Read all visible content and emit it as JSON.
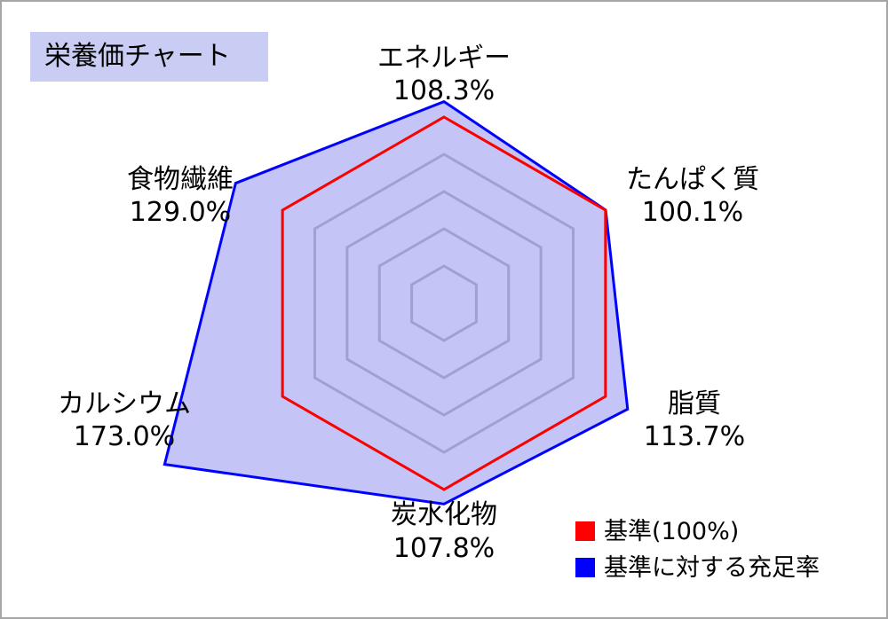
{
  "title": "栄養価チャート",
  "colors": {
    "baseline": "#ff0000",
    "fulfillment_stroke": "#0000ff",
    "fulfillment_fill": "#9c9cf0",
    "grid": "#a6a6a6",
    "title_bg": "#c9cdf3"
  },
  "chart_data": {
    "type": "radar",
    "title": "栄養価チャート",
    "categories": [
      "エネルギー",
      "たんぱく質",
      "脂質",
      "炭水化物",
      "カルシウム",
      "食物繊維"
    ],
    "value_labels": [
      "108.3%",
      "100.1%",
      "113.7%",
      "107.8%",
      "173.0%",
      "129.0%"
    ],
    "range": [
      0,
      200
    ],
    "grid_rings": 5,
    "series": [
      {
        "name": "基準(100%)",
        "values": [
          100,
          100,
          100,
          100,
          100,
          100
        ]
      },
      {
        "name": "基準に対する充足率",
        "values": [
          108.3,
          100.1,
          113.7,
          107.8,
          173.0,
          129.0
        ]
      }
    ],
    "legend": [
      "基準(100%)",
      "基準に対する充足率"
    ],
    "legend_position": "bottom-right"
  }
}
